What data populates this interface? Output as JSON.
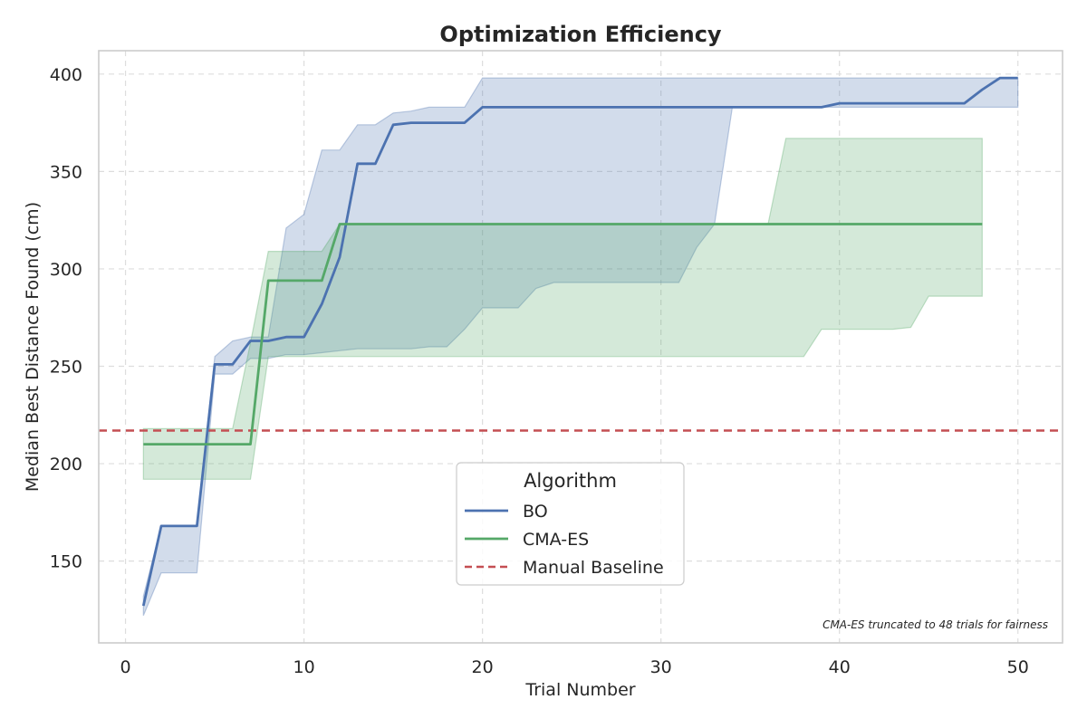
{
  "chart_data": {
    "type": "line",
    "title": "Optimization Efficiency",
    "xlabel": "Trial Number",
    "ylabel": "Median Best Distance Found (cm)",
    "xlim": [
      -1.5,
      52.5
    ],
    "ylim": [
      108,
      412
    ],
    "xticks": [
      0,
      10,
      20,
      30,
      40,
      50
    ],
    "yticks": [
      150,
      200,
      250,
      300,
      350,
      400
    ],
    "grid": true,
    "annotation": "CMA-ES truncated to 48 trials for fairness",
    "legend": {
      "title": "Algorithm",
      "placement": "lower-center",
      "entries": [
        "BO",
        "CMA-ES",
        "Manual Baseline"
      ]
    },
    "series": [
      {
        "name": "BO",
        "color": "#4c72b0",
        "x": [
          1,
          2,
          3,
          4,
          5,
          6,
          7,
          8,
          9,
          10,
          11,
          12,
          13,
          14,
          15,
          16,
          17,
          18,
          19,
          20,
          21,
          22,
          23,
          24,
          25,
          26,
          27,
          28,
          29,
          30,
          31,
          32,
          33,
          34,
          35,
          36,
          37,
          38,
          39,
          40,
          41,
          42,
          43,
          44,
          45,
          46,
          47,
          48,
          49,
          50
        ],
        "median": [
          127,
          168,
          168,
          168,
          251,
          251,
          263,
          263,
          265,
          265,
          282,
          306,
          354,
          354,
          374,
          375,
          375,
          375,
          375,
          383,
          383,
          383,
          383,
          383,
          383,
          383,
          383,
          383,
          383,
          383,
          383,
          383,
          383,
          383,
          383,
          383,
          383,
          383,
          383,
          385,
          385,
          385,
          385,
          385,
          385,
          385,
          385,
          392,
          398,
          398
        ],
        "lower": [
          122,
          144,
          144,
          144,
          246,
          246,
          254,
          254,
          256,
          256,
          257,
          258,
          259,
          259,
          259,
          259,
          260,
          260,
          269,
          280,
          280,
          280,
          290,
          293,
          293,
          293,
          293,
          293,
          293,
          293,
          293,
          311,
          323,
          383,
          383,
          383,
          383,
          383,
          383,
          383,
          383,
          383,
          383,
          383,
          383,
          383,
          383,
          383,
          383,
          383
        ],
        "upper": [
          132,
          168,
          168,
          168,
          255,
          263,
          265,
          265,
          321,
          328,
          361,
          361,
          374,
          374,
          380,
          381,
          383,
          383,
          383,
          398,
          398,
          398,
          398,
          398,
          398,
          398,
          398,
          398,
          398,
          398,
          398,
          398,
          398,
          398,
          398,
          398,
          398,
          398,
          398,
          398,
          398,
          398,
          398,
          398,
          398,
          398,
          398,
          398,
          398,
          398
        ]
      },
      {
        "name": "CMA-ES",
        "color": "#55a868",
        "x": [
          1,
          2,
          3,
          4,
          5,
          6,
          7,
          8,
          9,
          10,
          11,
          12,
          13,
          14,
          15,
          16,
          17,
          18,
          19,
          20,
          21,
          22,
          23,
          24,
          25,
          26,
          27,
          28,
          29,
          30,
          31,
          32,
          33,
          34,
          35,
          36,
          37,
          38,
          39,
          40,
          41,
          42,
          43,
          44,
          45,
          46,
          47,
          48
        ],
        "median": [
          210,
          210,
          210,
          210,
          210,
          210,
          210,
          294,
          294,
          294,
          294,
          323,
          323,
          323,
          323,
          323,
          323,
          323,
          323,
          323,
          323,
          323,
          323,
          323,
          323,
          323,
          323,
          323,
          323,
          323,
          323,
          323,
          323,
          323,
          323,
          323,
          323,
          323,
          323,
          323,
          323,
          323,
          323,
          323,
          323,
          323,
          323,
          323
        ],
        "lower": [
          192,
          192,
          192,
          192,
          192,
          192,
          192,
          255,
          255,
          255,
          255,
          255,
          255,
          255,
          255,
          255,
          255,
          255,
          255,
          255,
          255,
          255,
          255,
          255,
          255,
          255,
          255,
          255,
          255,
          255,
          255,
          255,
          255,
          255,
          255,
          255,
          255,
          255,
          269,
          269,
          269,
          269,
          269,
          270,
          286,
          286,
          286,
          286
        ],
        "upper": [
          218,
          218,
          218,
          218,
          218,
          218,
          262,
          309,
          309,
          309,
          309,
          323,
          323,
          323,
          323,
          323,
          323,
          323,
          323,
          323,
          323,
          323,
          323,
          323,
          323,
          323,
          323,
          323,
          323,
          323,
          323,
          323,
          323,
          323,
          323,
          323,
          367,
          367,
          367,
          367,
          367,
          367,
          367,
          367,
          367,
          367,
          367,
          367
        ]
      },
      {
        "name": "Manual Baseline",
        "color": "#c44e52",
        "constant": 217
      }
    ]
  }
}
